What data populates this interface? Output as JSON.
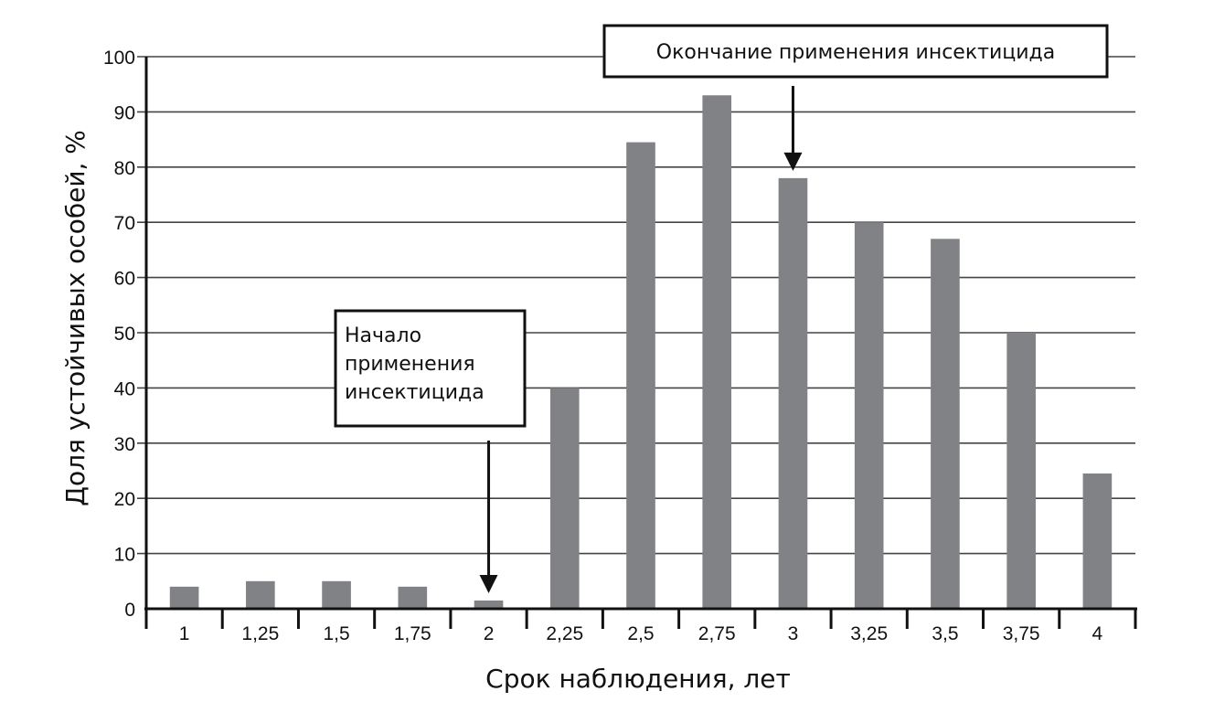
{
  "chart_data": {
    "type": "bar",
    "categories": [
      "1",
      "1,25",
      "1,5",
      "1,75",
      "2",
      "2,25",
      "2,5",
      "2,75",
      "3",
      "3,25",
      "3,5",
      "3,75",
      "4"
    ],
    "values": [
      4,
      5,
      5,
      4,
      1.5,
      40,
      84.5,
      93,
      78,
      70,
      67,
      50,
      24.5
    ],
    "yticks": [
      "0",
      "10",
      "20",
      "30",
      "40",
      "50",
      "60",
      "70",
      "80",
      "90",
      "100"
    ],
    "ylim": [
      0,
      100
    ],
    "xlabel": "Срок наблюдения, лет",
    "ylabel": "Доля устойчивых особей, %",
    "grid": "horizontal",
    "bar_color": "#808285",
    "grid_color": "#444444",
    "annotations": [
      {
        "lines": [
          "Начало",
          "применения",
          "инсектицида"
        ],
        "target_category": "2"
      },
      {
        "lines": [
          "Окончание применения инсектицида"
        ],
        "target_category": "3"
      }
    ]
  }
}
